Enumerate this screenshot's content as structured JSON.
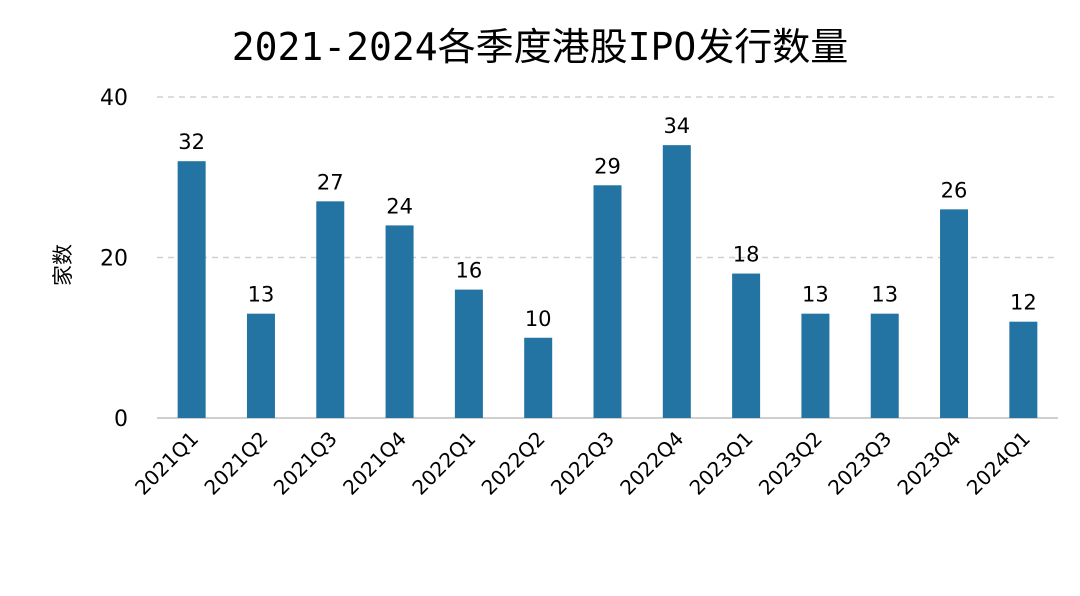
{
  "chart_data": {
    "type": "bar",
    "title": "2021-2024各季度港股IPO发行数量",
    "xlabel": "",
    "ylabel": "家数",
    "ylim": [
      0,
      40
    ],
    "yticks": [
      0,
      20,
      40
    ],
    "grid": true,
    "categories": [
      "2021Q1",
      "2021Q2",
      "2021Q3",
      "2021Q4",
      "2022Q1",
      "2022Q2",
      "2022Q3",
      "2022Q4",
      "2023Q1",
      "2023Q2",
      "2023Q3",
      "2023Q4",
      "2024Q1"
    ],
    "values": [
      32,
      13,
      27,
      24,
      16,
      10,
      29,
      34,
      18,
      13,
      13,
      26,
      12
    ],
    "colors": {
      "bar": "#2474a3",
      "grid": "#d0d0d0",
      "axis": "#bfbfbf",
      "text": "#000000"
    }
  }
}
